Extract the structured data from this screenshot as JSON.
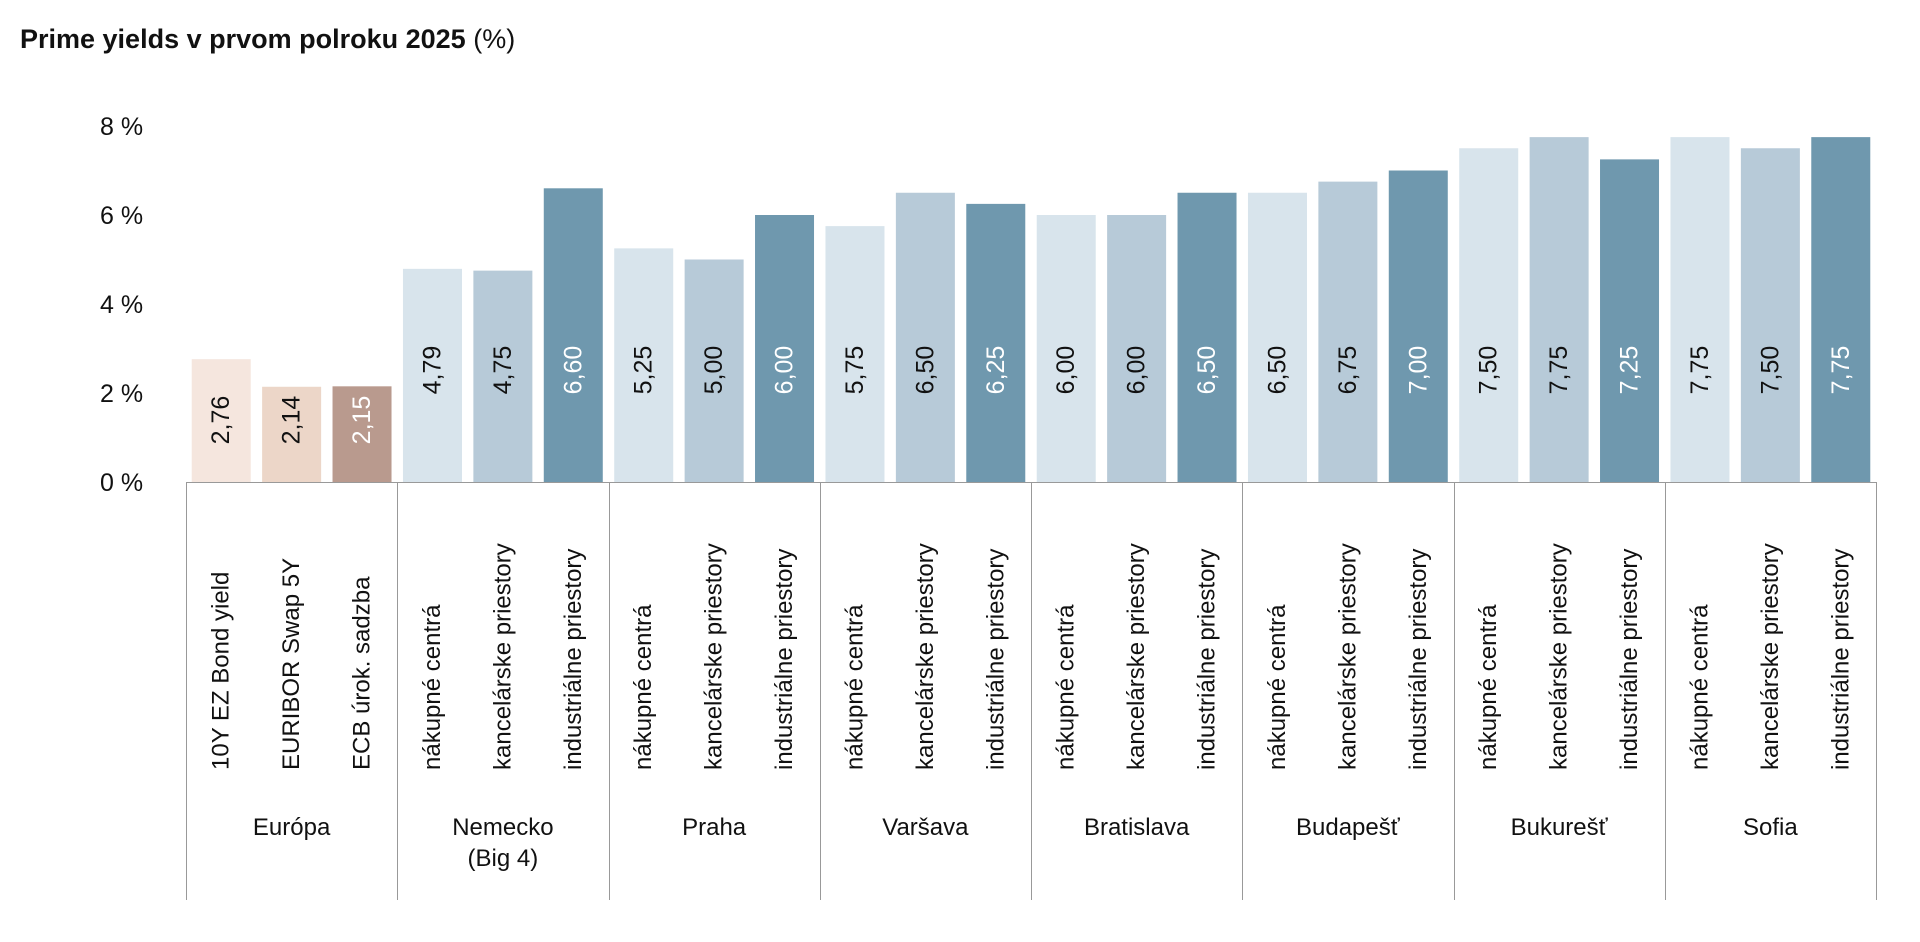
{
  "title": {
    "main": "Prime yields v prvom polroku 2025",
    "unit": "(%)"
  },
  "chart_data": {
    "type": "bar",
    "title": "Prime yields v prvom polroku 2025 (%)",
    "ylim": [
      0,
      8
    ],
    "yticks": [
      "0 %",
      "2 %",
      "4 %",
      "6 %",
      "8 %"
    ],
    "grid": false,
    "legend": "none",
    "groups": [
      {
        "label": [
          "Európa"
        ],
        "bars": [
          {
            "category": "10Y EZ Bond yield",
            "value": 2.76,
            "label": "2,76",
            "color": "#f5e6de"
          },
          {
            "category": "EURIBOR Swap 5Y",
            "value": 2.14,
            "label": "2,14",
            "color": "#ecd6c8"
          },
          {
            "category": "ECB úrok. sadzba",
            "value": 2.15,
            "label": "2,15",
            "color": "#b99a8e"
          }
        ]
      },
      {
        "label": [
          "Nemecko",
          "(Big 4)"
        ],
        "bars": [
          {
            "category": "nákupné centrá",
            "value": 4.79,
            "label": "4,79",
            "color": "#d8e4ec"
          },
          {
            "category": "kancelárske priestory",
            "value": 4.75,
            "label": "4,75",
            "color": "#b7cad8"
          },
          {
            "category": "industriálne priestory",
            "value": 6.6,
            "label": "6,60",
            "color": "#6f98ae"
          }
        ]
      },
      {
        "label": [
          "Praha"
        ],
        "bars": [
          {
            "category": "nákupné centrá",
            "value": 5.25,
            "label": "5,25",
            "color": "#d8e4ec"
          },
          {
            "category": "kancelárske priestory",
            "value": 5.0,
            "label": "5,00",
            "color": "#b7cad8"
          },
          {
            "category": "industriálne priestory",
            "value": 6.0,
            "label": "6,00",
            "color": "#6f98ae"
          }
        ]
      },
      {
        "label": [
          "Varšava"
        ],
        "bars": [
          {
            "category": "nákupné centrá",
            "value": 5.75,
            "label": "5,75",
            "color": "#d8e4ec"
          },
          {
            "category": "kancelárske priestory",
            "value": 6.5,
            "label": "6,50",
            "color": "#b7cad8"
          },
          {
            "category": "industriálne priestory",
            "value": 6.25,
            "label": "6,25",
            "color": "#6f98ae"
          }
        ]
      },
      {
        "label": [
          "Bratislava"
        ],
        "bars": [
          {
            "category": "nákupné centrá",
            "value": 6.0,
            "label": "6,00",
            "color": "#d8e4ec"
          },
          {
            "category": "kancelárske priestory",
            "value": 6.0,
            "label": "6,00",
            "color": "#b7cad8"
          },
          {
            "category": "industriálne priestory",
            "value": 6.5,
            "label": "6,50",
            "color": "#6f98ae"
          }
        ]
      },
      {
        "label": [
          "Budapešť"
        ],
        "bars": [
          {
            "category": "nákupné centrá",
            "value": 6.5,
            "label": "6,50",
            "color": "#d8e4ec"
          },
          {
            "category": "kancelárske priestory",
            "value": 6.75,
            "label": "6,75",
            "color": "#b7cad8"
          },
          {
            "category": "industriálne priestory",
            "value": 7.0,
            "label": "7,00",
            "color": "#6f98ae"
          }
        ]
      },
      {
        "label": [
          "Bukurešť"
        ],
        "bars": [
          {
            "category": "nákupné centrá",
            "value": 7.5,
            "label": "7,50",
            "color": "#d8e4ec"
          },
          {
            "category": "kancelárske priestory",
            "value": 7.75,
            "label": "7,75",
            "color": "#b7cad8"
          },
          {
            "category": "industriálne priestory",
            "value": 7.25,
            "label": "7,25",
            "color": "#6f98ae"
          }
        ]
      },
      {
        "label": [
          "Sofia"
        ],
        "bars": [
          {
            "category": "nákupné centrá",
            "value": 7.75,
            "label": "7,75",
            "color": "#d8e4ec"
          },
          {
            "category": "kancelárske priestory",
            "value": 7.5,
            "label": "7,50",
            "color": "#b7cad8"
          },
          {
            "category": "industriálne priestory",
            "value": 7.75,
            "label": "7,75",
            "color": "#6f98ae"
          }
        ]
      }
    ]
  }
}
